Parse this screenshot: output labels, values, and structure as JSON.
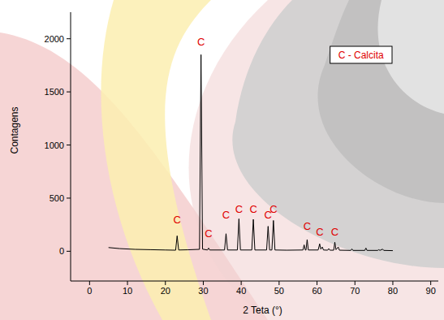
{
  "chart_data": {
    "type": "line",
    "xlabel": "2 Teta (°)",
    "ylabel": "Contagens",
    "x": [
      5,
      8,
      12,
      16,
      20,
      22.7,
      23.1,
      23.5,
      26,
      29.0,
      29.4,
      29.8,
      31.1,
      31.4,
      31.7,
      35.6,
      36.0,
      36.4,
      39.0,
      39.4,
      39.8,
      42.8,
      43.2,
      43.6,
      46.7,
      47.1,
      47.5,
      48.1,
      48.5,
      48.9,
      52,
      56.3,
      56.6,
      56.9,
      57.1,
      57.4,
      57.7,
      60.3,
      60.7,
      61.0,
      61.4,
      61.7,
      62.8,
      63.1,
      63.4,
      64.4,
      64.7,
      65.0,
      65.6,
      65.9,
      68.9,
      69.2,
      69.5,
      72.6,
      72.9,
      73.2,
      76.0,
      76.3,
      76.6,
      77.3,
      77.6,
      80
    ],
    "series": [
      {
        "color": "#000000",
        "values": [
          35,
          25,
          18,
          15,
          12,
          10,
          145,
          12,
          14,
          18,
          1850,
          20,
          12,
          30,
          12,
          12,
          165,
          12,
          12,
          305,
          12,
          12,
          300,
          12,
          12,
          235,
          12,
          12,
          290,
          12,
          10,
          12,
          60,
          12,
          12,
          110,
          12,
          12,
          70,
          20,
          40,
          12,
          10,
          25,
          10,
          10,
          85,
          15,
          40,
          10,
          8,
          22,
          8,
          8,
          30,
          8,
          8,
          15,
          8,
          20,
          8,
          6
        ]
      }
    ],
    "xlim": [
      -5,
      92
    ],
    "xticks": [
      0,
      10,
      20,
      30,
      40,
      50,
      60,
      70,
      80,
      90
    ],
    "ylim": [
      -280,
      2250
    ],
    "yticks": [
      0,
      500,
      1000,
      1500,
      2000
    ],
    "annotations": [
      {
        "text": "C",
        "x": 23.1,
        "y": 260
      },
      {
        "text": "C",
        "x": 29.4,
        "y": 1940
      },
      {
        "text": "C",
        "x": 31.4,
        "y": 130
      },
      {
        "text": "C",
        "x": 36.0,
        "y": 310
      },
      {
        "text": "C",
        "x": 39.4,
        "y": 365
      },
      {
        "text": "C",
        "x": 43.2,
        "y": 365
      },
      {
        "text": "C",
        "x": 47.1,
        "y": 310
      },
      {
        "text": "C",
        "x": 48.5,
        "y": 365
      },
      {
        "text": "C",
        "x": 57.4,
        "y": 200
      },
      {
        "text": "C",
        "x": 60.7,
        "y": 145
      },
      {
        "text": "C",
        "x": 64.7,
        "y": 145
      }
    ],
    "annotation_color": "#e00000",
    "legend_text": "C - Calcita",
    "legend": "top-right",
    "grid": false
  }
}
